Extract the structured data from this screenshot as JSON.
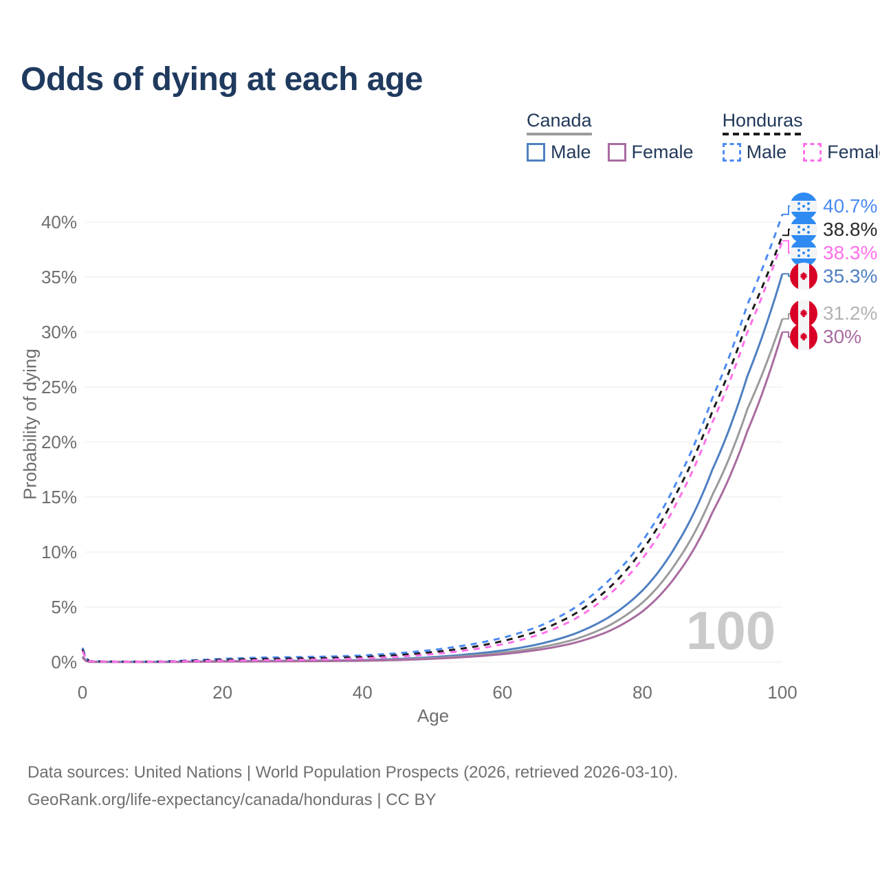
{
  "title": "Odds of dying at each age",
  "legend": {
    "groups": [
      {
        "label": "Canada",
        "line_style": "solid",
        "underline_color": "#9b9b9b",
        "items": [
          {
            "label": "Male",
            "color": "#4f80c2",
            "dashed": false
          },
          {
            "label": "Female",
            "color": "#a96ba0",
            "dashed": false
          }
        ]
      },
      {
        "label": "Honduras",
        "line_style": "dashed",
        "underline_color": "#1c1c1c",
        "items": [
          {
            "label": "Male",
            "color": "#4b8af3",
            "dashed": true
          },
          {
            "label": "Female",
            "color": "#ff70ea",
            "dashed": true
          }
        ]
      }
    ]
  },
  "chart_data": {
    "type": "line",
    "xlabel": "Age",
    "ylabel": "Probability of dying",
    "x_ticks": [
      0,
      20,
      40,
      60,
      80,
      100
    ],
    "y_ticks": [
      "0%",
      "5%",
      "10%",
      "15%",
      "20%",
      "25%",
      "30%",
      "35%",
      "40%"
    ],
    "y_tick_values": [
      0,
      5,
      10,
      15,
      20,
      25,
      30,
      35,
      40
    ],
    "xlim": [
      0,
      100
    ],
    "ylim_percent": [
      0,
      42
    ],
    "grid": "horizontal",
    "age_watermark": "100",
    "ages": [
      0,
      1,
      5,
      10,
      15,
      20,
      25,
      30,
      35,
      40,
      45,
      50,
      55,
      60,
      65,
      70,
      75,
      80,
      85,
      90,
      95,
      100
    ],
    "series": [
      {
        "name": "Honduras Male",
        "country": "Honduras",
        "sex": "Male",
        "color": "#4b8af3",
        "dashed": true,
        "flag": "honduras",
        "end_label": "40.7%",
        "end_value": 40.7,
        "label_color": "#4b8af3",
        "values": [
          1.3,
          0.1,
          0.04,
          0.04,
          0.15,
          0.3,
          0.4,
          0.45,
          0.5,
          0.6,
          0.8,
          1.1,
          1.55,
          2.2,
          3.2,
          4.8,
          7.3,
          11.0,
          16.5,
          24.0,
          32.5,
          40.7
        ]
      },
      {
        "name": "Honduras Both sexes",
        "country": "Honduras",
        "sex": "Both sexes",
        "color": "#1c1c1c",
        "dashed": true,
        "flag": "honduras",
        "end_label": "38.8%",
        "end_value": 38.8,
        "label_color": "#2a2a2a",
        "values": [
          1.15,
          0.09,
          0.035,
          0.035,
          0.11,
          0.21,
          0.28,
          0.32,
          0.37,
          0.46,
          0.63,
          0.9,
          1.3,
          1.9,
          2.8,
          4.25,
          6.6,
          10.2,
          15.5,
          22.8,
          31.0,
          38.8
        ]
      },
      {
        "name": "Honduras Female",
        "country": "Honduras",
        "sex": "Female",
        "color": "#ff70ea",
        "dashed": true,
        "flag": "honduras",
        "end_label": "38.3%",
        "end_value": 38.3,
        "label_color": "#ff70ea",
        "values": [
          1.0,
          0.08,
          0.03,
          0.03,
          0.08,
          0.13,
          0.17,
          0.2,
          0.25,
          0.33,
          0.48,
          0.72,
          1.08,
          1.62,
          2.45,
          3.8,
          6.0,
          9.4,
          14.6,
          21.8,
          30.0,
          38.3
        ]
      },
      {
        "name": "Canada Male",
        "country": "Canada",
        "sex": "Male",
        "color": "#4f80c2",
        "dashed": false,
        "flag": "canada",
        "end_label": "35.3%",
        "end_value": 35.3,
        "label_color": "#4f80c2",
        "values": [
          0.5,
          0.03,
          0.01,
          0.01,
          0.04,
          0.08,
          0.1,
          0.12,
          0.14,
          0.18,
          0.28,
          0.45,
          0.7,
          1.05,
          1.6,
          2.5,
          4.0,
          6.5,
          10.8,
          17.5,
          26.0,
          35.3
        ]
      },
      {
        "name": "Canada Both sexes",
        "country": "Canada",
        "sex": "Both sexes",
        "color": "#9b9b9b",
        "dashed": false,
        "flag": "canada",
        "end_label": "31.2%",
        "end_value": 31.2,
        "label_color": "#b3b3b3",
        "values": [
          0.45,
          0.025,
          0.009,
          0.009,
          0.03,
          0.06,
          0.075,
          0.09,
          0.11,
          0.14,
          0.22,
          0.36,
          0.56,
          0.85,
          1.3,
          2.0,
          3.25,
          5.4,
          9.2,
          15.2,
          23.0,
          31.2
        ]
      },
      {
        "name": "Canada Female",
        "country": "Canada",
        "sex": "Female",
        "color": "#a96ba0",
        "dashed": false,
        "flag": "canada",
        "end_label": "30%",
        "end_value": 30.0,
        "label_color": "#a96ba0",
        "values": [
          0.42,
          0.02,
          0.008,
          0.008,
          0.025,
          0.045,
          0.055,
          0.07,
          0.09,
          0.12,
          0.18,
          0.3,
          0.47,
          0.72,
          1.1,
          1.7,
          2.75,
          4.6,
          8.0,
          13.6,
          21.0,
          30.0
        ]
      }
    ]
  },
  "footer": {
    "line1": "Data sources: United Nations | World Population Prospects (2026, retrieved 2026-03-10).",
    "line2": "GeoRank.org/life-expectancy/canada/honduras | CC BY"
  }
}
